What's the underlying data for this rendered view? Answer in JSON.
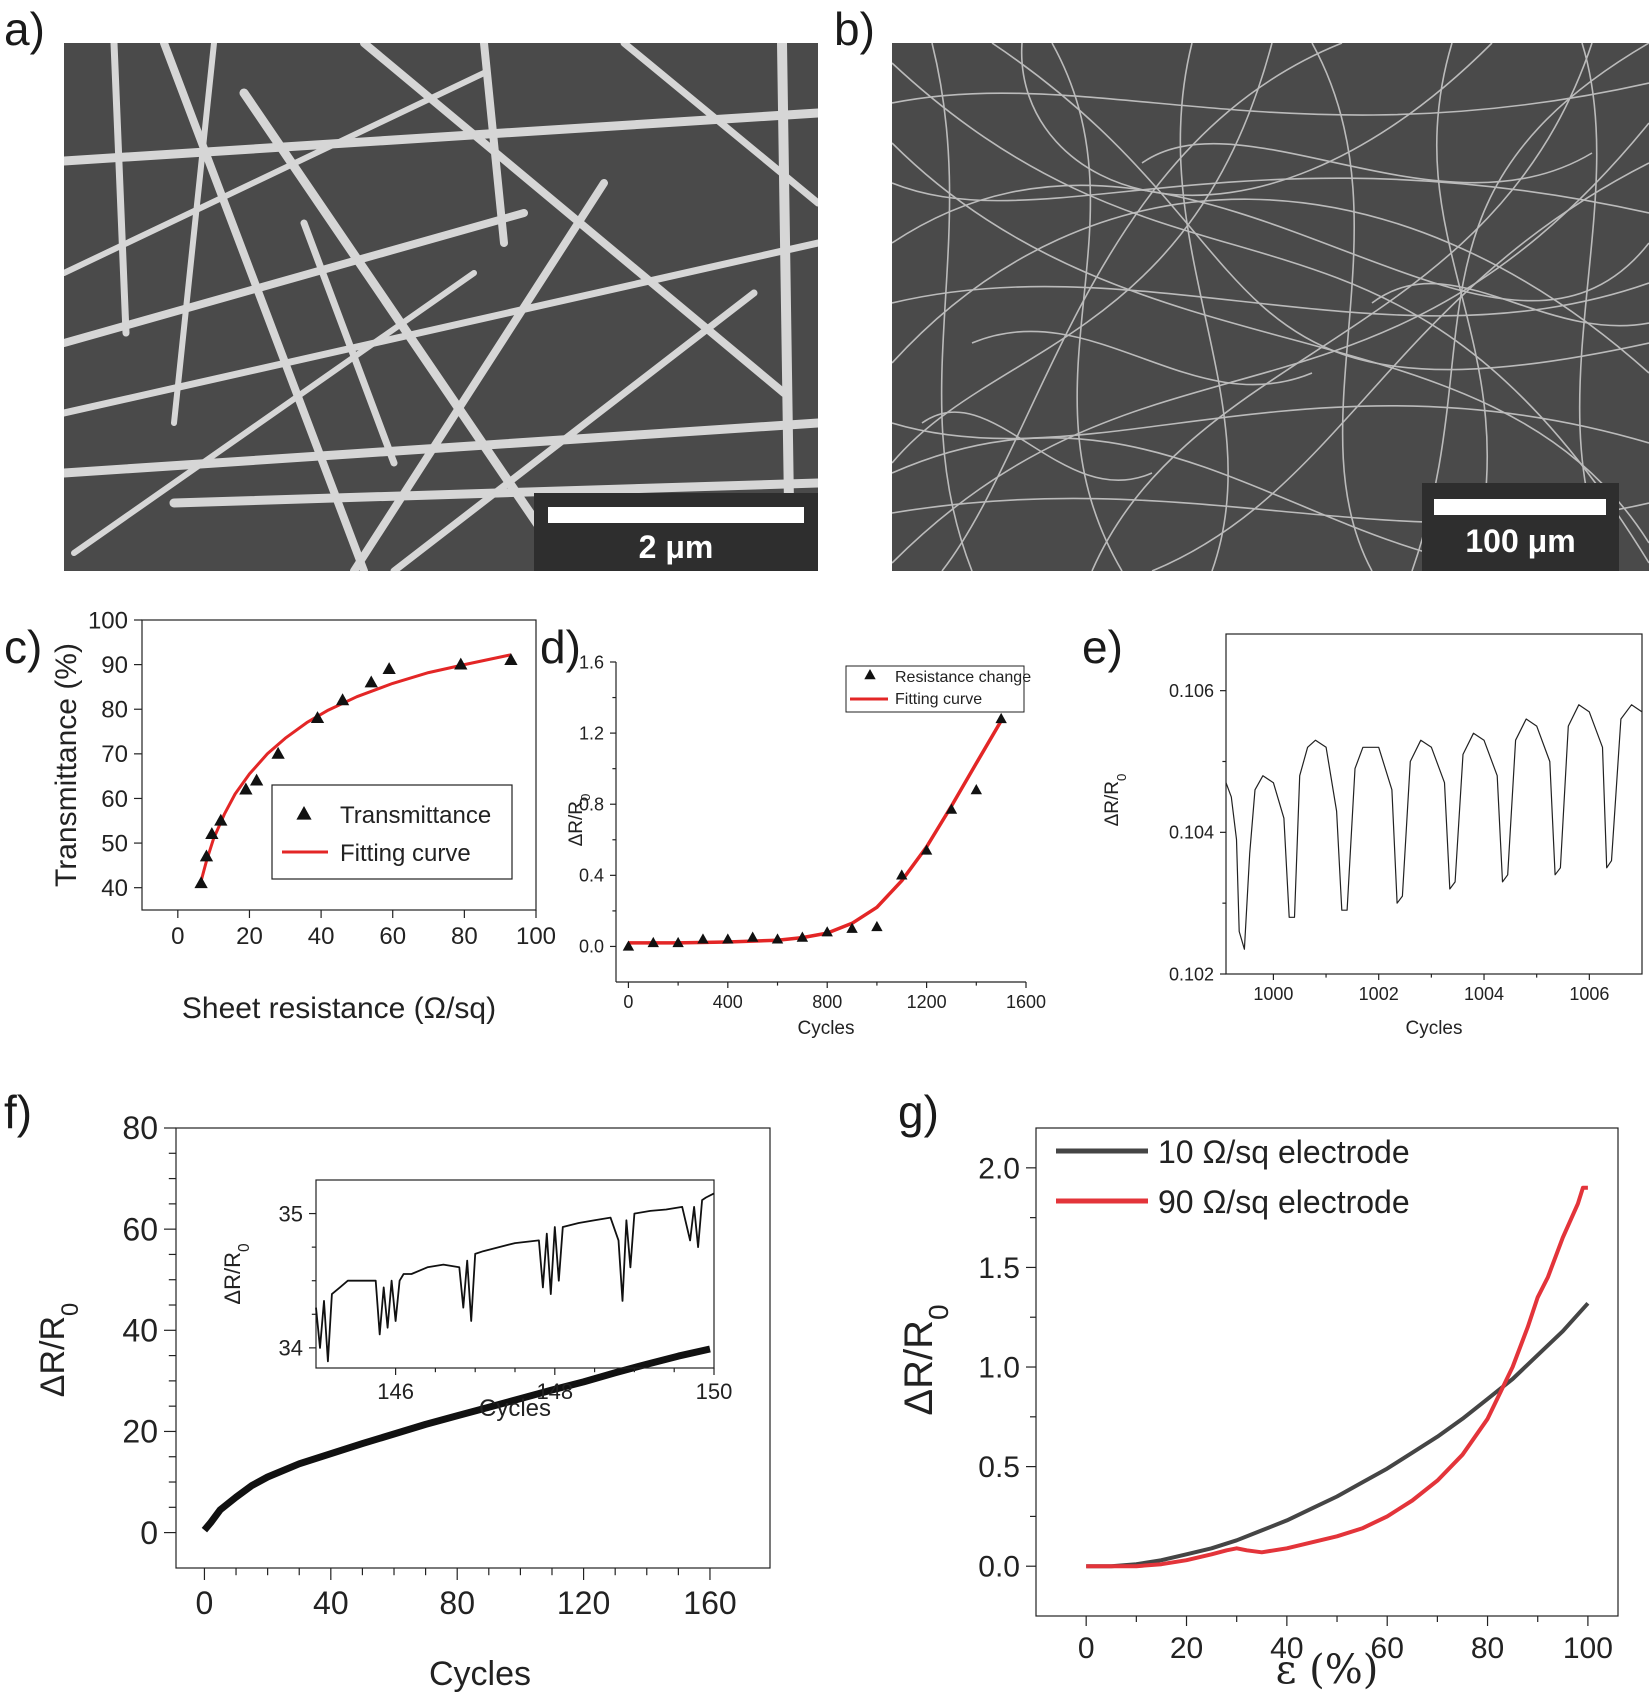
{
  "panels": {
    "a": {
      "label": "a)",
      "scale_label": "2 μm"
    },
    "b": {
      "label": "b)",
      "scale_label": "100 μm"
    }
  },
  "chart_data": [
    {
      "id": "c",
      "label": "c)",
      "type": "scatter",
      "xlabel": "Sheet resistance (Ω/sq)",
      "ylabel": "Transmittance (%)",
      "xlim": [
        -10,
        100
      ],
      "ylim": [
        35,
        100
      ],
      "xticks": [
        0,
        20,
        40,
        60,
        80,
        100
      ],
      "yticks": [
        40,
        50,
        60,
        70,
        80,
        90,
        100
      ],
      "legend": [
        "Transmittance",
        "Fitting curve"
      ],
      "series": [
        {
          "name": "Transmittance",
          "marker": "triangle",
          "x": [
            6.5,
            8,
            9.5,
            12,
            19,
            22,
            28,
            39,
            46,
            54,
            59,
            79,
            93
          ],
          "y": [
            41,
            47,
            52,
            55,
            62,
            64,
            70,
            78,
            82,
            86,
            89,
            90,
            91
          ]
        },
        {
          "name": "Fitting curve",
          "color": "#e32626",
          "x": [
            6.5,
            8,
            10,
            13,
            16,
            20,
            25,
            30,
            36,
            42,
            50,
            60,
            70,
            80,
            93
          ],
          "y": [
            41.5,
            46,
            51,
            56.5,
            61,
            65.5,
            70,
            73.5,
            77,
            79.8,
            82.8,
            85.8,
            88.2,
            90,
            92.2
          ]
        }
      ]
    },
    {
      "id": "d",
      "label": "d)",
      "type": "scatter",
      "xlabel": "Cycles",
      "ylabel": "ΔR/R0",
      "xlim": [
        -50,
        1600
      ],
      "ylim": [
        -0.2,
        1.6
      ],
      "xticks": [
        0,
        400,
        800,
        1200,
        1600
      ],
      "yticks": [
        0.0,
        0.4,
        0.8,
        1.2,
        1.6
      ],
      "legend": [
        "Resistance change",
        "Fitting curve"
      ],
      "series": [
        {
          "name": "Resistance change",
          "marker": "triangle",
          "x": [
            0,
            100,
            200,
            300,
            400,
            500,
            600,
            700,
            800,
            900,
            1000,
            1100,
            1200,
            1300,
            1400,
            1500
          ],
          "y": [
            0.0,
            0.02,
            0.02,
            0.04,
            0.04,
            0.05,
            0.04,
            0.05,
            0.08,
            0.1,
            0.11,
            0.4,
            0.54,
            0.77,
            0.88,
            1.28
          ]
        },
        {
          "name": "Fitting curve",
          "color": "#e32626",
          "x": [
            0,
            200,
            400,
            600,
            700,
            800,
            900,
            1000,
            1100,
            1200,
            1300,
            1400,
            1500
          ],
          "y": [
            0.02,
            0.02,
            0.025,
            0.035,
            0.05,
            0.075,
            0.13,
            0.22,
            0.37,
            0.56,
            0.79,
            1.03,
            1.27
          ]
        }
      ]
    },
    {
      "id": "e",
      "label": "e)",
      "type": "line",
      "xlabel": "Cycles",
      "ylabel": "ΔR/R0",
      "xlim": [
        999.1,
        1007
      ],
      "ylim": [
        0.102,
        0.1068
      ],
      "xticks": [
        1000,
        1002,
        1004,
        1006
      ],
      "yticks": [
        0.102,
        0.104,
        0.106
      ],
      "series": [
        {
          "name": "ΔR/R0",
          "x": [
            999.1,
            999.2,
            999.3,
            999.35,
            999.45,
            999.55,
            999.65,
            999.8,
            1000.0,
            1000.2,
            1000.3,
            1000.4,
            1000.5,
            1000.65,
            1000.8,
            1001.0,
            1001.2,
            1001.3,
            1001.4,
            1001.55,
            1001.7,
            1002.0,
            1002.25,
            1002.35,
            1002.45,
            1002.6,
            1002.8,
            1003.0,
            1003.25,
            1003.35,
            1003.45,
            1003.6,
            1003.8,
            1004.0,
            1004.25,
            1004.35,
            1004.45,
            1004.6,
            1004.8,
            1005.0,
            1005.25,
            1005.35,
            1005.45,
            1005.6,
            1005.8,
            1006.0,
            1006.25,
            1006.33,
            1006.42,
            1006.6,
            1006.8,
            1007.0
          ],
          "y": [
            0.1047,
            0.1045,
            0.1039,
            0.1026,
            0.10235,
            0.1037,
            0.1046,
            0.1048,
            0.1047,
            0.1042,
            0.1028,
            0.1028,
            0.1048,
            0.1052,
            0.1053,
            0.1052,
            0.1043,
            0.1029,
            0.1029,
            0.1049,
            0.1052,
            0.1052,
            0.1046,
            0.103,
            0.1031,
            0.105,
            0.1053,
            0.1052,
            0.1047,
            0.1032,
            0.1033,
            0.1051,
            0.1054,
            0.1053,
            0.1048,
            0.1033,
            0.1034,
            0.1053,
            0.1056,
            0.1055,
            0.105,
            0.1034,
            0.1035,
            0.1055,
            0.1058,
            0.1057,
            0.1052,
            0.1035,
            0.1036,
            0.1056,
            0.1058,
            0.1057
          ]
        }
      ]
    },
    {
      "id": "f",
      "label": "f)",
      "type": "line",
      "xlabel": "Cycles",
      "ylabel": "ΔR/R0",
      "xlim": [
        -9,
        179
      ],
      "ylim": [
        -7,
        80
      ],
      "xticks": [
        0,
        40,
        80,
        120,
        160
      ],
      "yticks": [
        0,
        20,
        40,
        60,
        80
      ],
      "series": [
        {
          "name": "ΔR/R0",
          "x": [
            0,
            2,
            5,
            10,
            15,
            20,
            30,
            40,
            50,
            60,
            70,
            80,
            90,
            100,
            110,
            120,
            130,
            140,
            150,
            160
          ],
          "y": [
            0.5,
            2,
            4.5,
            7,
            9.3,
            11,
            13.6,
            15.6,
            17.6,
            19.5,
            21.4,
            23.1,
            24.8,
            26.5,
            28.2,
            29.8,
            31.6,
            33.3,
            34.9,
            36.3
          ]
        }
      ],
      "inset": {
        "xlabel": "Cycles",
        "ylabel": "ΔR/R0",
        "xlim": [
          145,
          150
        ],
        "ylim": [
          33.85,
          35.25
        ],
        "xticks": [
          146,
          148,
          150
        ],
        "yticks": [
          34,
          35
        ],
        "x": [
          145.0,
          145.05,
          145.1,
          145.15,
          145.2,
          145.3,
          145.4,
          145.6,
          145.75,
          145.8,
          145.85,
          145.9,
          145.95,
          146.0,
          146.05,
          146.1,
          146.2,
          146.4,
          146.6,
          146.8,
          146.85,
          146.9,
          146.95,
          147.0,
          147.1,
          147.3,
          147.5,
          147.8,
          147.85,
          147.9,
          147.95,
          148.0,
          148.05,
          148.1,
          148.3,
          148.5,
          148.7,
          148.8,
          148.85,
          148.9,
          148.95,
          149.0,
          149.2,
          149.4,
          149.6,
          149.7,
          149.75,
          149.8,
          149.85,
          149.9,
          150.0
        ],
        "y": [
          34.3,
          34.0,
          34.35,
          33.9,
          34.4,
          34.45,
          34.5,
          34.5,
          34.5,
          34.1,
          34.45,
          34.15,
          34.5,
          34.2,
          34.5,
          34.55,
          34.55,
          34.6,
          34.62,
          34.6,
          34.3,
          34.65,
          34.2,
          34.7,
          34.72,
          34.75,
          34.78,
          34.8,
          34.45,
          34.85,
          34.4,
          34.9,
          34.5,
          34.9,
          34.93,
          34.95,
          34.97,
          34.8,
          34.35,
          34.95,
          34.6,
          35.0,
          35.02,
          35.03,
          35.05,
          34.8,
          35.05,
          34.75,
          35.1,
          35.12,
          35.15
        ]
      }
    },
    {
      "id": "g",
      "label": "g)",
      "type": "line",
      "xlabel": "ε (%)",
      "ylabel": "ΔR/R0",
      "xlim": [
        -10,
        106
      ],
      "ylim": [
        -0.25,
        2.2
      ],
      "xticks": [
        0,
        20,
        40,
        60,
        80,
        100
      ],
      "yticks": [
        0.0,
        0.5,
        1.0,
        1.5,
        2.0
      ],
      "legend": [
        "10 Ω/sq electrode",
        "90 Ω/sq electrode"
      ],
      "series": [
        {
          "name": "10 Ω/sq electrode",
          "color": "#454545",
          "x": [
            0,
            5,
            10,
            15,
            20,
            25,
            30,
            35,
            40,
            45,
            50,
            55,
            60,
            65,
            70,
            75,
            80,
            85,
            90,
            95,
            100
          ],
          "y": [
            0.0,
            0.0,
            0.01,
            0.03,
            0.06,
            0.09,
            0.13,
            0.18,
            0.23,
            0.29,
            0.35,
            0.42,
            0.49,
            0.57,
            0.65,
            0.74,
            0.84,
            0.94,
            1.06,
            1.18,
            1.32
          ]
        },
        {
          "name": "90 Ω/sq electrode",
          "color": "#e3343a",
          "x": [
            0,
            5,
            10,
            15,
            20,
            25,
            28,
            30,
            32,
            35,
            40,
            45,
            50,
            55,
            60,
            65,
            70,
            75,
            80,
            85,
            88,
            90,
            92,
            95,
            98,
            99,
            100
          ],
          "y": [
            0.0,
            0.0,
            0.0,
            0.01,
            0.03,
            0.06,
            0.08,
            0.09,
            0.08,
            0.07,
            0.09,
            0.12,
            0.15,
            0.19,
            0.25,
            0.33,
            0.43,
            0.56,
            0.74,
            1.0,
            1.2,
            1.35,
            1.45,
            1.65,
            1.82,
            1.9,
            1.9
          ]
        }
      ]
    }
  ]
}
